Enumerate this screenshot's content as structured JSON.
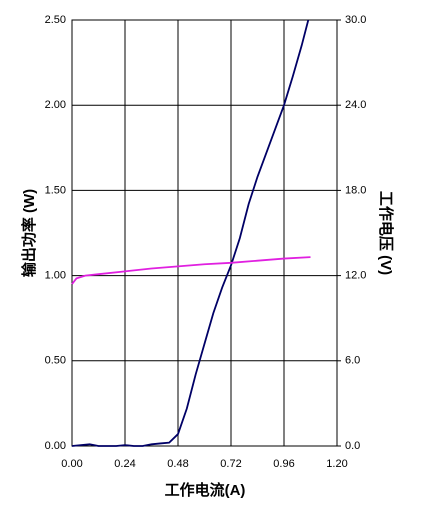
{
  "chart_data": {
    "type": "line",
    "x_label": "工作电流(A)",
    "y_label": "输出功率 (W)",
    "y2_label": "工作电压 (V)",
    "xlim": [
      0,
      1.2
    ],
    "xticks": [
      {
        "value": 0,
        "label": "0.00"
      },
      {
        "value": 0.24,
        "label": "0.24"
      },
      {
        "value": 0.48,
        "label": "0.48"
      },
      {
        "value": 0.72,
        "label": "0.72"
      },
      {
        "value": 0.96,
        "label": "0.96"
      },
      {
        "value": 1.2,
        "label": "1.20"
      }
    ],
    "ylim": [
      0,
      2.5
    ],
    "yticks": [
      {
        "value": 0,
        "label": "0.00"
      },
      {
        "value": 0.5,
        "label": "0.50"
      },
      {
        "value": 1,
        "label": "1.00"
      },
      {
        "value": 1.5,
        "label": "1.50"
      },
      {
        "value": 2,
        "label": "2.00"
      },
      {
        "value": 2.5,
        "label": "2.50"
      }
    ],
    "y2lim": [
      0,
      30
    ],
    "y2ticks": [
      {
        "value": 0,
        "label": "0.0"
      },
      {
        "value": 6,
        "label": "6.0"
      },
      {
        "value": 12,
        "label": "12.0"
      },
      {
        "value": 18,
        "label": "18.0"
      },
      {
        "value": 24,
        "label": "24.0"
      },
      {
        "value": 30,
        "label": "30.0"
      }
    ],
    "grid": true,
    "series": [
      {
        "color": "#000066",
        "x": [
          0,
          0.04,
          0.08,
          0.12,
          0.16,
          0.2,
          0.24,
          0.28,
          0.32,
          0.36,
          0.4,
          0.44,
          0.48,
          0.52,
          0.56,
          0.6,
          0.64,
          0.68,
          0.72,
          0.76,
          0.8,
          0.84,
          0.88,
          0.92,
          0.96,
          1.0,
          1.04,
          1.07
        ],
        "values": [
          0,
          0.005,
          0.01,
          0,
          0,
          0,
          0.005,
          0,
          0,
          0.01,
          0.015,
          0.02,
          0.07,
          0.22,
          0.42,
          0.6,
          0.78,
          0.93,
          1.06,
          1.22,
          1.42,
          1.58,
          1.72,
          1.86,
          2.0,
          2.17,
          2.35,
          2.5
        ]
      },
      {
        "color": "#e020e0",
        "axis": "y2",
        "x": [
          0,
          0.02,
          0.06,
          0.12,
          0.24,
          0.36,
          0.48,
          0.6,
          0.72,
          0.84,
          0.96,
          1.08
        ],
        "values": [
          11.4,
          11.8,
          12.0,
          12.1,
          12.3,
          12.5,
          12.65,
          12.8,
          12.9,
          13.05,
          13.2,
          13.3
        ]
      }
    ]
  }
}
